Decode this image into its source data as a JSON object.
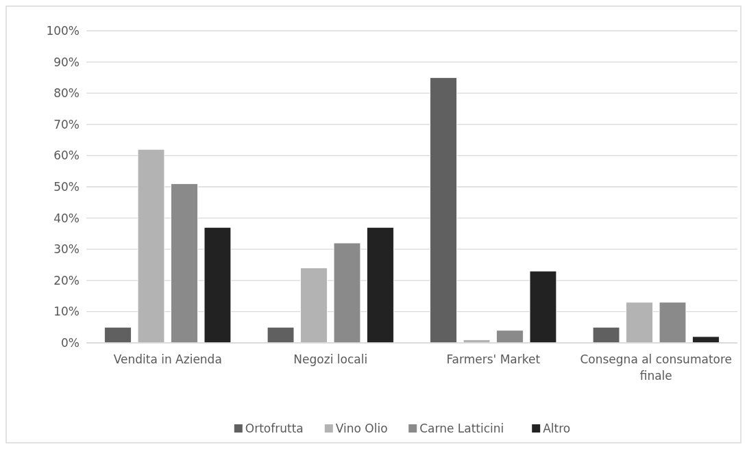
{
  "chart_data": {
    "type": "bar",
    "categories": [
      "Vendita in Azienda",
      "Negozi locali",
      "Farmers' Market",
      "Consegna al consumatore finale"
    ],
    "series": [
      {
        "name": "Ortofrutta",
        "color": "#606060",
        "values": [
          5,
          5,
          85,
          5
        ]
      },
      {
        "name": "Vino Olio",
        "color": "#b3b3b3",
        "values": [
          62,
          24,
          1,
          13
        ]
      },
      {
        "name": "Carne Latticini",
        "color": "#8a8a8a",
        "values": [
          51,
          32,
          4,
          13
        ]
      },
      {
        "name": "Altro",
        "color": "#222222",
        "values": [
          37,
          37,
          23,
          2
        ]
      }
    ],
    "ylim": [
      0,
      100
    ],
    "yticks": [
      {
        "value": 0,
        "label": "0%"
      },
      {
        "value": 10,
        "label": "10%"
      },
      {
        "value": 20,
        "label": "20%"
      },
      {
        "value": 30,
        "label": "30%"
      },
      {
        "value": 40,
        "label": "40%"
      },
      {
        "value": 50,
        "label": "50%"
      },
      {
        "value": 60,
        "label": "60%"
      },
      {
        "value": 70,
        "label": "70%"
      },
      {
        "value": 80,
        "label": "80%"
      },
      {
        "value": 90,
        "label": "90%"
      },
      {
        "value": 100,
        "label": "100%"
      }
    ],
    "grid": "y",
    "legend": "bottom"
  }
}
